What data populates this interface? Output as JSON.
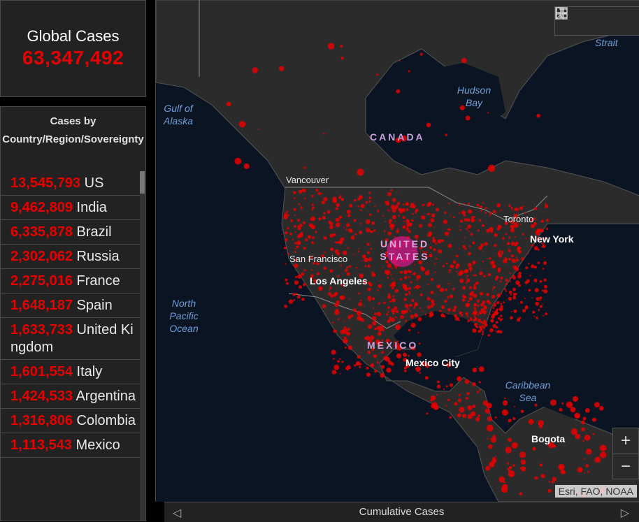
{
  "global": {
    "title": "Global Cases",
    "value": "63,347,492"
  },
  "list": {
    "header": "Cases by Country/Region/Sovereignty",
    "rows": [
      {
        "num": "13,545,793",
        "name": "US"
      },
      {
        "num": "9,462,809",
        "name": "India"
      },
      {
        "num": "6,335,878",
        "name": "Brazil"
      },
      {
        "num": "2,302,062",
        "name": "Russia"
      },
      {
        "num": "2,275,016",
        "name": "France"
      },
      {
        "num": "1,648,187",
        "name": "Spain"
      },
      {
        "num": "1,633,733",
        "name": "United Kingdom"
      },
      {
        "num": "1,601,554",
        "name": "Italy"
      },
      {
        "num": "1,424,533",
        "name": "Argentina"
      },
      {
        "num": "1,316,806",
        "name": "Colombia"
      },
      {
        "num": "1,113,543",
        "name": "Mexico"
      }
    ]
  },
  "map": {
    "labels": {
      "strait": "Strait",
      "hudson_bay": "Hudson Bay",
      "gulf_of_alaska": "Gulf of Alaska",
      "canada": "CANADA",
      "vancouver": "Vancouver",
      "toronto": "Toronto",
      "new_york": "New York",
      "united_states": "UNITED STATES",
      "san_francisco": "San Francisco",
      "los_angeles": "Los Angeles",
      "north_pacific_ocean": "North Pacific Ocean",
      "mexico": "MEXICO",
      "mexico_city": "Mexico City",
      "caribbean_sea": "Caribbean Sea",
      "bogota": "Bogota"
    },
    "attribution": "Esri, FAO, NOAA",
    "toolbar_icons": [
      "bookmark-icon",
      "legend-list-icon",
      "basemap-gallery-icon"
    ],
    "zoom_in": "+",
    "zoom_out": "−",
    "colors": {
      "cases": "#e60000",
      "land": "#2b2b2b",
      "water": "#0b1422"
    }
  },
  "bottom": {
    "label": "Cumulative Cases",
    "prev": "◁",
    "next": "▷"
  }
}
